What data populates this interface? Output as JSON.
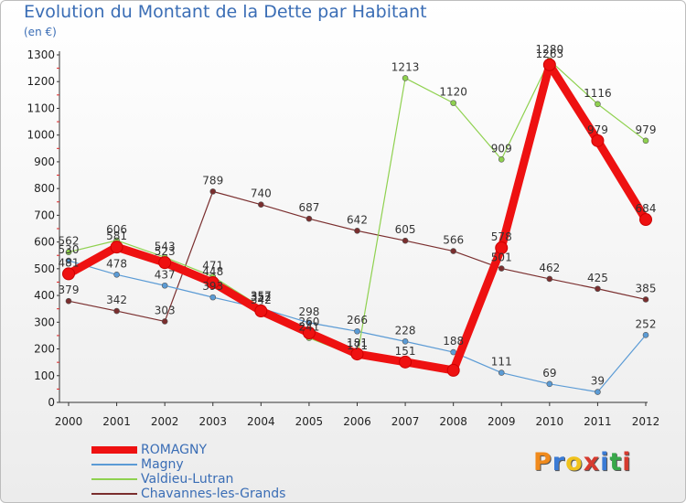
{
  "title": "Evolution du Montant de la Dette par Habitant",
  "unit": "(en €)",
  "logo": {
    "text": "Proxiti",
    "colors": [
      "#f08a1c",
      "#3a7bd5",
      "#f0c21c",
      "#d63a2f",
      "#3a7bd5",
      "#38a84a",
      "#d63a2f"
    ]
  },
  "chart_data": {
    "type": "line",
    "x": [
      "2000",
      "2001",
      "2002",
      "2003",
      "2004",
      "2005",
      "2006",
      "2007",
      "2008",
      "2009",
      "2010",
      "2011",
      "2012"
    ],
    "ylim": [
      0,
      1300
    ],
    "yticks": [
      "0",
      "100",
      "200",
      "300",
      "400",
      "500",
      "600",
      "700",
      "800",
      "900",
      "1000",
      "1100",
      "1200",
      "1300"
    ],
    "grid": false,
    "legend": "bottom-left",
    "series": [
      {
        "name": "ROMAGNY",
        "color": "#ee1111",
        "values": [
          481,
          581,
          523,
          448,
          342,
          260,
          181,
          151,
          120,
          578,
          1263,
          979,
          684
        ],
        "labels": [
          "481",
          "581",
          "523",
          "448",
          "342",
          "260",
          "181",
          "151",
          "",
          "578",
          "1263",
          "979",
          "684"
        ]
      },
      {
        "name": "Magny",
        "color": "#5b9bd5",
        "values": [
          530,
          478,
          437,
          393,
          352,
          298,
          266,
          228,
          188,
          111,
          69,
          39,
          252
        ],
        "labels": [
          "530",
          "478",
          "437",
          "393",
          "352",
          "298",
          "266",
          "228",
          "188",
          "111",
          "69",
          "39",
          "252"
        ]
      },
      {
        "name": "Valdieu-Lutran",
        "color": "#8fd14f",
        "values": [
          562,
          606,
          543,
          471,
          357,
          241,
          171,
          1213,
          1120,
          909,
          1280,
          1116,
          979
        ],
        "labels": [
          "562",
          "606",
          "543",
          "471",
          "357",
          "241",
          "171",
          "1213",
          "1120",
          "909",
          "1280",
          "1116",
          "979"
        ]
      },
      {
        "name": "Chavannes-les-Grands",
        "color": "#7a2e2e",
        "values": [
          379,
          342,
          303,
          789,
          740,
          687,
          642,
          605,
          566,
          501,
          462,
          425,
          385
        ],
        "labels": [
          "379",
          "342",
          "303",
          "789",
          "740",
          "687",
          "642",
          "605",
          "566",
          "501",
          "462",
          "425",
          "385"
        ]
      }
    ]
  }
}
